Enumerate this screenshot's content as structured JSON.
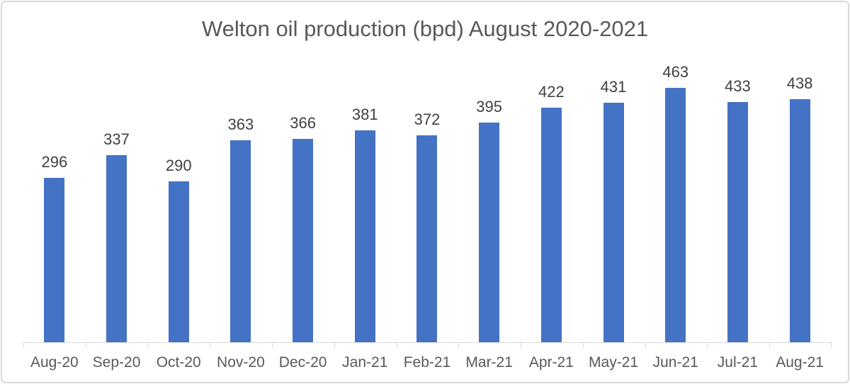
{
  "chart_data": {
    "type": "bar",
    "title": "Welton oil production (bpd) August 2020-2021",
    "categories": [
      "Aug-20",
      "Sep-20",
      "Oct-20",
      "Nov-20",
      "Dec-20",
      "Jan-21",
      "Feb-21",
      "Mar-21",
      "Apr-21",
      "May-21",
      "Jun-21",
      "Jul-21",
      "Aug-21"
    ],
    "values": [
      296,
      337,
      290,
      363,
      366,
      381,
      372,
      395,
      422,
      431,
      463,
      433,
      438
    ],
    "xlabel": "",
    "ylabel": "",
    "ylim": [
      0,
      500
    ],
    "data_labels": true,
    "legend": "none",
    "gridlines": false,
    "bar_color": "#4472C4",
    "title_color": "#595959",
    "value_label_color": "#404040",
    "category_label_color": "#595959",
    "axis_line_color": "#D9D9D9",
    "frame_border_color": "#D9D9D9"
  }
}
